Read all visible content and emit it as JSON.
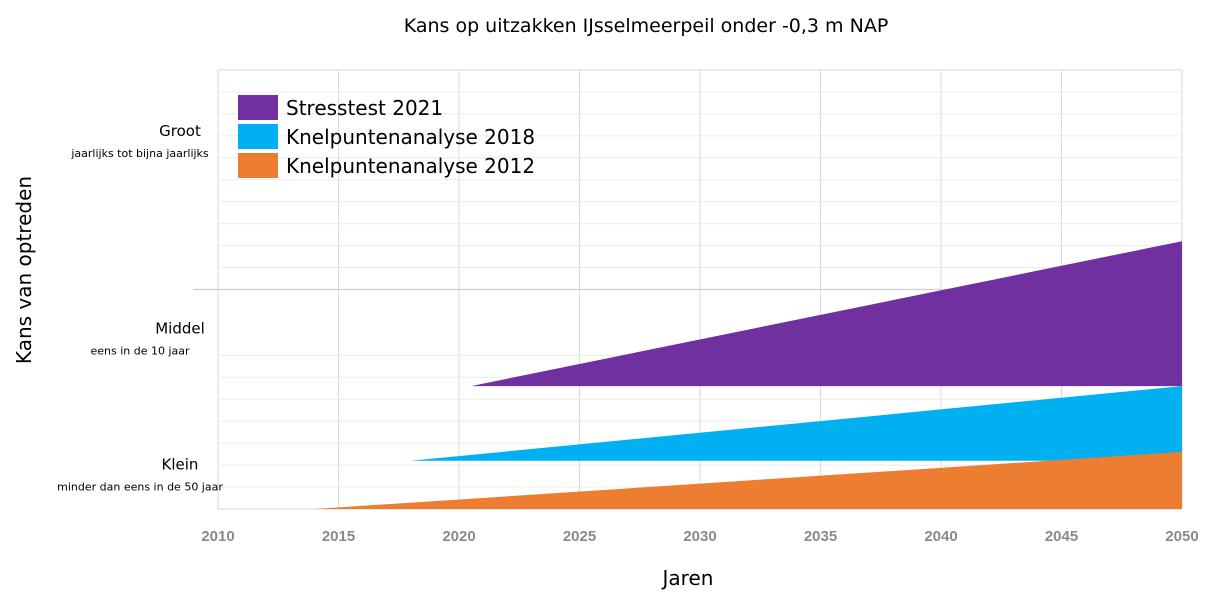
{
  "chart_data": {
    "type": "area",
    "title": "Kans op uitzakken IJsselmeerpeil onder -0,3 m NAP",
    "xlabel": "Jaren",
    "ylabel": "Kans van optreden",
    "xlim": [
      2010,
      2050
    ],
    "x_ticks": [
      "2010",
      "2015",
      "2020",
      "2025",
      "2030",
      "2035",
      "2040",
      "2045",
      "2050"
    ],
    "y_categories": [
      {
        "level": 0.9,
        "label": "Klein",
        "sublabel": "minder dan eens in de 50 jaar"
      },
      {
        "level": 4,
        "label": "Middel",
        "sublabel": "eens in de 10 jaar"
      },
      {
        "level": 8.5,
        "label": "Groot",
        "sublabel": "jaarlijks tot bijna jaarlijks"
      }
    ],
    "ylim": [
      0,
      10
    ],
    "grid": true,
    "legend_position": "top-left",
    "series": [
      {
        "name": "Stresstest 2021",
        "color": "#7030A0",
        "x": [
          2020.5,
          2050
        ],
        "lower": [
          2.8,
          2.8
        ],
        "upper": [
          2.8,
          6.1
        ]
      },
      {
        "name": "Knelpuntenanalyse 2018",
        "color": "#00B0F0",
        "x": [
          2018,
          2050
        ],
        "lower": [
          1.1,
          1.1
        ],
        "upper": [
          1.1,
          2.8
        ]
      },
      {
        "name": "Knelpuntenanalyse 2012",
        "color": "#ED7D31",
        "x": [
          2014,
          2050
        ],
        "lower": [
          0,
          0
        ],
        "upper": [
          0,
          1.3
        ]
      }
    ]
  }
}
